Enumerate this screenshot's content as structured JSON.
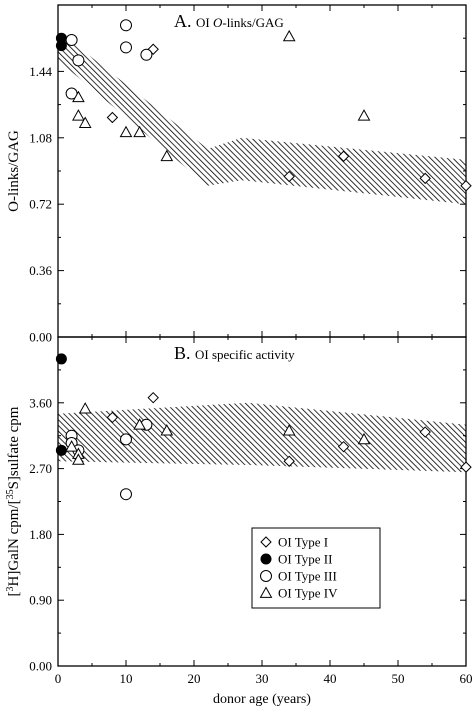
{
  "figure": {
    "xlabel": "donor age (years)",
    "x_ticks": [
      "0",
      "10",
      "20",
      "30",
      "40",
      "50",
      "60"
    ],
    "legend": [
      {
        "marker": "diamond",
        "label": "OI Type I"
      },
      {
        "marker": "filled-circle",
        "label": "OI Type II"
      },
      {
        "marker": "circle",
        "label": "OI Type III"
      },
      {
        "marker": "triangle",
        "label": "OI Type IV"
      }
    ]
  },
  "chart_data": [
    {
      "type": "scatter",
      "panel_letter": "A.",
      "title_prefix": "OI ",
      "title_italic": "O",
      "title_rest": "-links/GAG",
      "xlabel": "donor age (years)",
      "ylabel": "O-links/GAG",
      "xlim": [
        0,
        60
      ],
      "ylim": [
        0,
        1.8
      ],
      "y_ticks": [
        "0.00",
        "0.36",
        "0.72",
        "1.08",
        "1.44"
      ],
      "band_upper": [
        [
          0,
          1.66
        ],
        [
          22,
          1.02
        ],
        [
          27,
          1.08
        ],
        [
          60,
          0.96
        ]
      ],
      "band_lower": [
        [
          0,
          1.5
        ],
        [
          22,
          0.82
        ],
        [
          27,
          0.85
        ],
        [
          60,
          0.72
        ]
      ],
      "series": [
        {
          "name": "OI Type I",
          "marker": "diamond",
          "points": [
            [
              14,
              1.56
            ],
            [
              8,
              1.19
            ],
            [
              34,
              0.87
            ],
            [
              42,
              0.98
            ],
            [
              54,
              0.86
            ],
            [
              60,
              0.82
            ]
          ]
        },
        {
          "name": "OI Type II",
          "marker": "filled-circle",
          "points": [
            [
              0.5,
              1.62
            ],
            [
              0.5,
              1.58
            ]
          ]
        },
        {
          "name": "OI Type III",
          "marker": "circle",
          "points": [
            [
              2,
              1.61
            ],
            [
              3,
              1.5
            ],
            [
              2,
              1.32
            ],
            [
              10,
              1.69
            ],
            [
              10,
              1.57
            ],
            [
              13,
              1.53
            ]
          ]
        },
        {
          "name": "OI Type IV",
          "marker": "triangle",
          "points": [
            [
              3,
              1.3
            ],
            [
              3,
              1.2
            ],
            [
              4,
              1.16
            ],
            [
              10,
              1.11
            ],
            [
              12,
              1.11
            ],
            [
              16,
              0.98
            ],
            [
              34,
              1.63
            ],
            [
              45,
              1.2
            ]
          ]
        }
      ]
    },
    {
      "type": "scatter",
      "panel_letter": "B.",
      "title_prefix": "OI specific activity",
      "title_italic": "",
      "title_rest": "",
      "xlabel": "donor age (years)",
      "ylabel": "[3H]GalN cpm/[35S]sulfate cpm",
      "xlim": [
        0,
        60
      ],
      "ylim": [
        0,
        4.5
      ],
      "y_ticks": [
        "0.00",
        "0.90",
        "1.80",
        "2.70",
        "3.60"
      ],
      "band_upper": [
        [
          0,
          3.45
        ],
        [
          28,
          3.6
        ],
        [
          60,
          3.3
        ]
      ],
      "band_lower": [
        [
          0,
          2.8
        ],
        [
          28,
          2.75
        ],
        [
          60,
          2.65
        ]
      ],
      "series": [
        {
          "name": "OI Type I",
          "marker": "diamond",
          "points": [
            [
              14,
              3.67
            ],
            [
              8,
              3.4
            ],
            [
              34,
              2.8
            ],
            [
              42,
              3.0
            ],
            [
              54,
              3.2
            ],
            [
              60,
              2.72
            ]
          ]
        },
        {
          "name": "OI Type II",
          "marker": "filled-circle",
          "points": [
            [
              0.5,
              4.2
            ],
            [
              0.5,
              2.95
            ]
          ]
        },
        {
          "name": "OI Type III",
          "marker": "circle",
          "points": [
            [
              2,
              3.15
            ],
            [
              2,
              3.05
            ],
            [
              3,
              2.95
            ],
            [
              10,
              3.1
            ],
            [
              13,
              3.3
            ],
            [
              10,
              2.35
            ]
          ]
        },
        {
          "name": "OI Type IV",
          "marker": "triangle",
          "points": [
            [
              2,
              3.0
            ],
            [
              3,
              2.9
            ],
            [
              3,
              2.82
            ],
            [
              4,
              3.52
            ],
            [
              12,
              3.3
            ],
            [
              16,
              3.22
            ],
            [
              34,
              3.22
            ],
            [
              45,
              3.1
            ]
          ]
        }
      ]
    }
  ]
}
